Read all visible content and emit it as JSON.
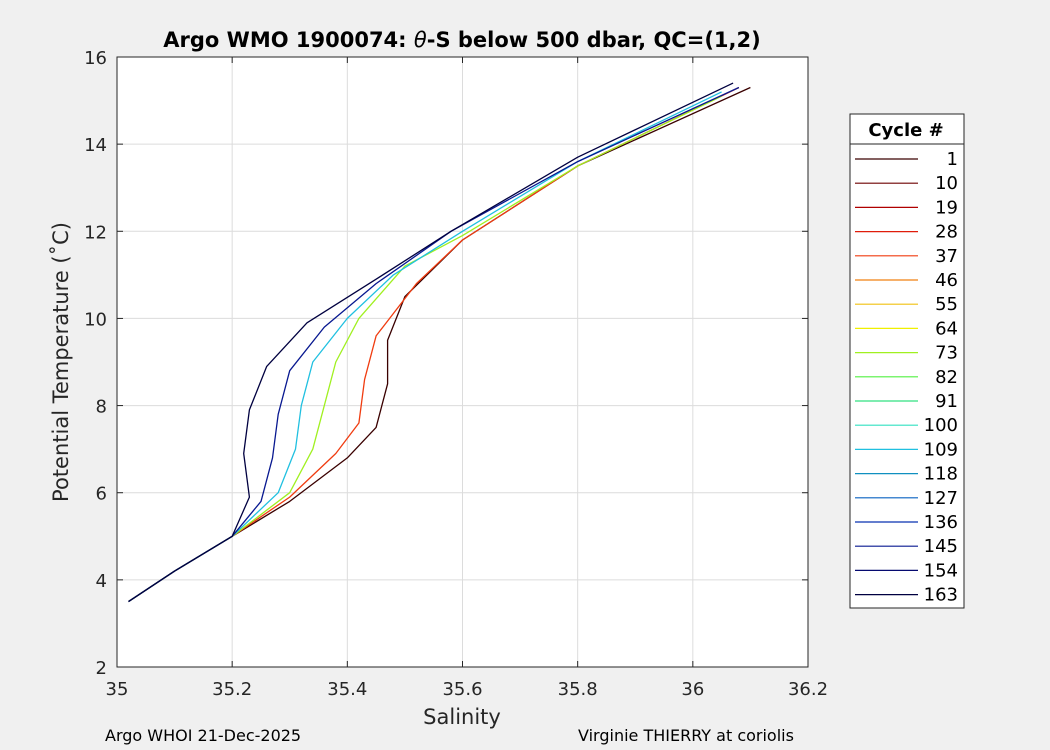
{
  "chart_data": {
    "type": "line",
    "title": "Argo WMO 1900074: θ-S below 500 dbar,  QC=(1,2)",
    "title_prefix": "Argo WMO 1900074: ",
    "title_theta": "θ",
    "title_suffix": "-S below 500 dbar,  QC=(1,2)",
    "xlabel": "Salinity",
    "ylabel": "Potential Temperature (˚C)",
    "xlim": [
      35,
      36.2
    ],
    "ylim": [
      2,
      16
    ],
    "xticks": [
      35,
      35.2,
      35.4,
      35.6,
      35.8,
      36,
      36.2
    ],
    "xtick_labels": [
      "35",
      "35.2",
      "35.4",
      "35.6",
      "35.8",
      "36",
      "36.2"
    ],
    "yticks": [
      2,
      4,
      6,
      8,
      10,
      12,
      14,
      16
    ],
    "ytick_labels": [
      "2",
      "4",
      "6",
      "8",
      "10",
      "12",
      "14",
      "16"
    ],
    "grid": true,
    "legend_title": "Cycle #",
    "legend_position": "right",
    "legend": [
      "1",
      "10",
      "19",
      "28",
      "37",
      "46",
      "55",
      "64",
      "73",
      "82",
      "91",
      "100",
      "109",
      "118",
      "127",
      "136",
      "145",
      "154",
      "163"
    ],
    "legend_colors": [
      "#3a0000",
      "#6e0000",
      "#b00000",
      "#e01c0a",
      "#f03c10",
      "#f08010",
      "#f0c010",
      "#f0f000",
      "#a0f020",
      "#50f040",
      "#30e080",
      "#30e0c0",
      "#20c0e0",
      "#1090c0",
      "#0860c0",
      "#0830b0",
      "#081890",
      "#060a70",
      "#000040"
    ],
    "series": [
      {
        "name": "1",
        "x": [
          35.02,
          35.1,
          35.2,
          35.3,
          35.4,
          35.45,
          35.47,
          35.47,
          35.5,
          35.6,
          35.8,
          36.1
        ],
        "y": [
          3.5,
          4.2,
          5.0,
          5.8,
          6.8,
          7.5,
          8.5,
          9.5,
          10.5,
          11.8,
          13.5,
          15.3
        ]
      },
      {
        "name": "37",
        "x": [
          35.02,
          35.1,
          35.2,
          35.3,
          35.38,
          35.42,
          35.43,
          35.45,
          35.52,
          35.6,
          35.8,
          36.08
        ],
        "y": [
          3.5,
          4.2,
          5.0,
          5.9,
          6.9,
          7.6,
          8.6,
          9.6,
          10.8,
          11.8,
          13.5,
          15.3
        ]
      },
      {
        "name": "73",
        "x": [
          35.02,
          35.1,
          35.2,
          35.3,
          35.34,
          35.36,
          35.38,
          35.42,
          35.5,
          35.6,
          35.8,
          36.05
        ],
        "y": [
          3.5,
          4.2,
          5.0,
          6.0,
          7.0,
          8.0,
          9.0,
          10.0,
          11.2,
          11.9,
          13.5,
          15.1
        ]
      },
      {
        "name": "109",
        "x": [
          35.02,
          35.1,
          35.2,
          35.28,
          35.31,
          35.32,
          35.34,
          35.4,
          35.48,
          35.6,
          35.8,
          36.05
        ],
        "y": [
          3.5,
          4.2,
          5.0,
          6.0,
          7.0,
          8.0,
          9.0,
          10.0,
          11.0,
          12.0,
          13.6,
          15.2
        ]
      },
      {
        "name": "145",
        "x": [
          35.02,
          35.1,
          35.2,
          35.25,
          35.27,
          35.28,
          35.3,
          35.36,
          35.45,
          35.58,
          35.8,
          36.08
        ],
        "y": [
          3.5,
          4.2,
          5.0,
          5.8,
          6.8,
          7.8,
          8.8,
          9.8,
          10.8,
          12.0,
          13.6,
          15.3
        ]
      },
      {
        "name": "163",
        "x": [
          35.02,
          35.1,
          35.2,
          35.23,
          35.22,
          35.23,
          35.26,
          35.33,
          35.45,
          35.58,
          35.8,
          36.07
        ],
        "y": [
          3.5,
          4.2,
          5.0,
          5.9,
          6.9,
          7.9,
          8.9,
          9.9,
          10.9,
          12.0,
          13.7,
          15.4
        ]
      }
    ]
  },
  "footer": {
    "left": "Argo WHOI 21-Dec-2025",
    "right": "Virginie THIERRY at coriolis"
  }
}
